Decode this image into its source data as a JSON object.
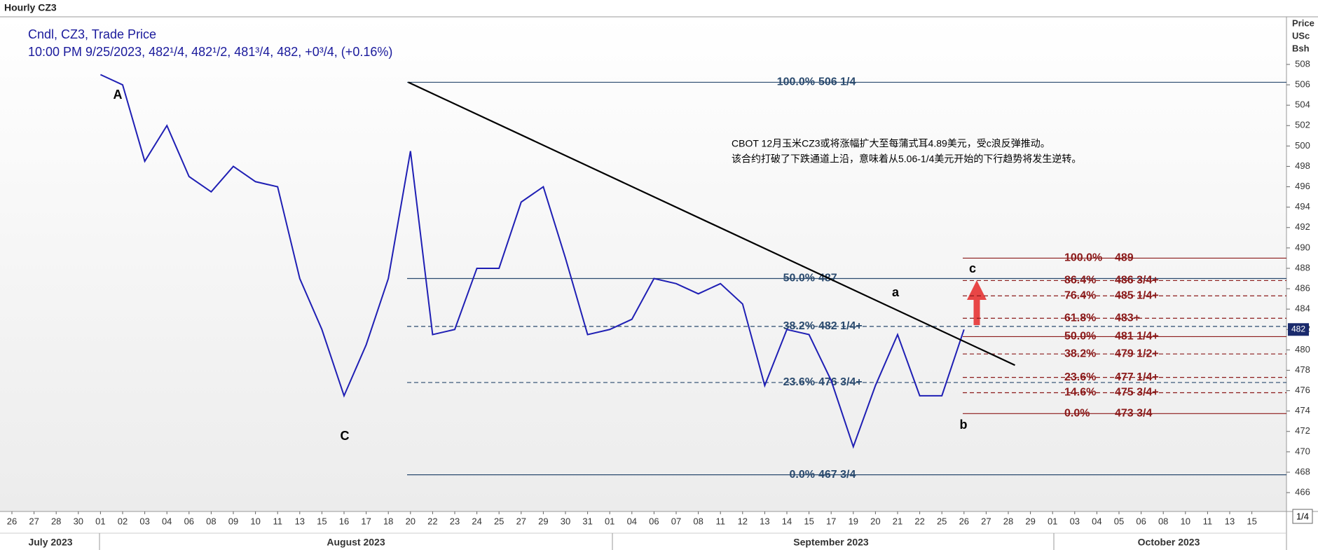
{
  "chart_data": {
    "type": "line",
    "title": "Hourly CZ3",
    "legend_title": "Cndl, CZ3, Trade Price",
    "legend_detail": "10:00 PM 9/25/2023, 482¹/4, 482¹/2, 481³/4, 482, +0³/4, (+0.16%)",
    "y_axis_label": [
      "Price",
      "USc",
      "Bsh"
    ],
    "categories": [
      "26",
      "27",
      "28",
      "30",
      "01",
      "02",
      "03",
      "04",
      "06",
      "08",
      "09",
      "10",
      "11",
      "13",
      "15",
      "16",
      "17",
      "18",
      "20",
      "22",
      "23",
      "24",
      "25",
      "27",
      "29",
      "30",
      "31",
      "01",
      "04",
      "06",
      "07",
      "08",
      "11",
      "12",
      "13",
      "14",
      "15",
      "17",
      "19",
      "20",
      "21",
      "22",
      "25",
      "26",
      "27",
      "28",
      "29",
      "01",
      "03",
      "04",
      "05",
      "06",
      "08",
      "10",
      "11",
      "13",
      "15"
    ],
    "x_groups": [
      "July 2023",
      "August 2023",
      "September 2023",
      "October 2023"
    ],
    "series": [
      {
        "name": "CZ3",
        "color": "#1f1fb4",
        "values": [
          null,
          null,
          null,
          null,
          507,
          506,
          498.5,
          502,
          497,
          495.5,
          498,
          496.5,
          496,
          487,
          482,
          475.5,
          480.5,
          487,
          499.5,
          481.5,
          482,
          488,
          488,
          494.5,
          496,
          489,
          481.5,
          482,
          483,
          487,
          486.5,
          485.5,
          486.5,
          484.5,
          476.5,
          482,
          481.5,
          477,
          470.5,
          476.5,
          481.5,
          475.5,
          475.5,
          482,
          null,
          null,
          null,
          null,
          null,
          null,
          null,
          null,
          null,
          null,
          null,
          null,
          null
        ]
      }
    ],
    "ylim": [
      464.15,
      512.67
    ],
    "yticks": [
      466,
      468,
      470,
      472,
      474,
      476,
      478,
      480,
      482,
      484,
      486,
      488,
      490,
      492,
      494,
      496,
      498,
      500,
      502,
      504,
      506,
      508
    ],
    "last_price": 482,
    "page_indicator": "1/4",
    "trendline": {
      "values": [
        506.25,
        478.5
      ],
      "color": "#000000"
    },
    "fib_sets": [
      {
        "color": "#2a4a6e",
        "levels": [
          {
            "name": "100.0%",
            "label": "506 1/4",
            "value": 506.25,
            "dashed": false
          },
          {
            "name": "50.0%",
            "label": "487",
            "value": 487,
            "dashed": false
          },
          {
            "name": "38.2%",
            "label": "482 1/4+",
            "value": 482.3,
            "dashed": true
          },
          {
            "name": "23.6%",
            "label": "476 3/4+",
            "value": 476.8,
            "dashed": true
          },
          {
            "name": "0.0%",
            "label": "467 3/4",
            "value": 467.75,
            "dashed": false
          }
        ]
      },
      {
        "color": "#8b1a1a",
        "levels": [
          {
            "name": "100.0%",
            "label": "489",
            "value": 489,
            "dashed": false
          },
          {
            "name": "86.4%",
            "label": "486 3/4+",
            "value": 486.8,
            "dashed": true
          },
          {
            "name": "76.4%",
            "label": "485 1/4+",
            "value": 485.3,
            "dashed": true
          },
          {
            "name": "61.8%",
            "label": "483+",
            "value": 483.1,
            "dashed": true
          },
          {
            "name": "50.0%",
            "label": "481 1/4+",
            "value": 481.3,
            "dashed": false
          },
          {
            "name": "38.2%",
            "label": "479 1/2+",
            "value": 479.6,
            "dashed": true
          },
          {
            "name": "23.6%",
            "label": "477 1/4+",
            "value": 477.3,
            "dashed": true
          },
          {
            "name": "14.6%",
            "label": "475 3/4+",
            "value": 475.8,
            "dashed": true
          },
          {
            "name": "0.0%",
            "label": "473 3/4",
            "value": 473.75,
            "dashed": false
          }
        ]
      }
    ],
    "wave_labels": [
      "A",
      "C",
      "a",
      "b",
      "c"
    ],
    "annotation": [
      "CBOT 12月玉米CZ3或将涨幅扩大至每蒲式耳4.89美元，受c浪反弹推动。",
      "该合约打破了下跌通道上沿，意味着从5.06-1/4美元开始的下行趋势将发生逆转。"
    ]
  }
}
